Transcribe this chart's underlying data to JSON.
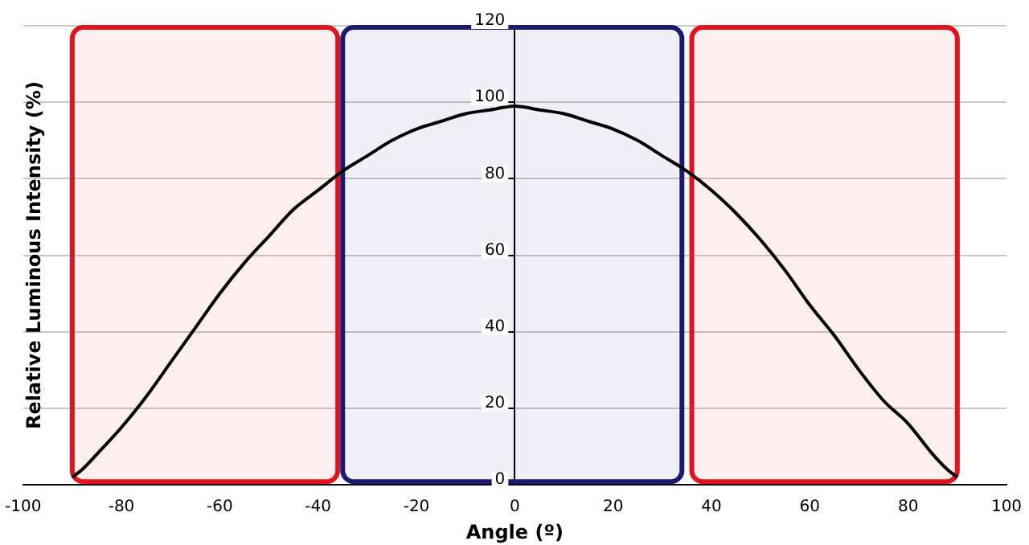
{
  "chart_data": {
    "type": "line",
    "xlabel": "Angle (º)",
    "ylabel": "Relative Luminous Intensity (%)",
    "x": [
      -90,
      -88,
      -85,
      -80,
      -75,
      -70,
      -65,
      -60,
      -55,
      -50,
      -45,
      -40,
      -35,
      -30,
      -25,
      -20,
      -15,
      -10,
      -5,
      0,
      5,
      10,
      15,
      20,
      25,
      30,
      35,
      40,
      45,
      50,
      55,
      60,
      65,
      70,
      75,
      80,
      85,
      88,
      90
    ],
    "series": [
      {
        "color": "#000000",
        "values": [
          2,
          4,
          8,
          15,
          23,
          32,
          41,
          50,
          58,
          65,
          72,
          77,
          82,
          86,
          90,
          93,
          95,
          97,
          98,
          99,
          98,
          97,
          95,
          93,
          90,
          86,
          82,
          77,
          71,
          64,
          56,
          47,
          39,
          30,
          22,
          16,
          8,
          4,
          2
        ]
      }
    ],
    "xlim": [
      -100,
      100
    ],
    "xticks": [
      -100,
      -80,
      -60,
      -40,
      -20,
      0,
      20,
      40,
      60,
      80,
      100
    ],
    "ylim": [
      0,
      120
    ],
    "yticks": [
      0,
      20,
      40,
      60,
      80,
      100,
      120
    ],
    "grid": "y",
    "marker": "none",
    "line_style": "solid",
    "legend": false,
    "bands": [
      {
        "axis": "x",
        "from": -90,
        "to": -36,
        "color": "#e0141e"
      },
      {
        "axis": "x",
        "from": -35,
        "to": 34,
        "color": "#1a1a6e"
      },
      {
        "axis": "x",
        "from": 36,
        "to": 90,
        "color": "#e0141e"
      }
    ]
  }
}
